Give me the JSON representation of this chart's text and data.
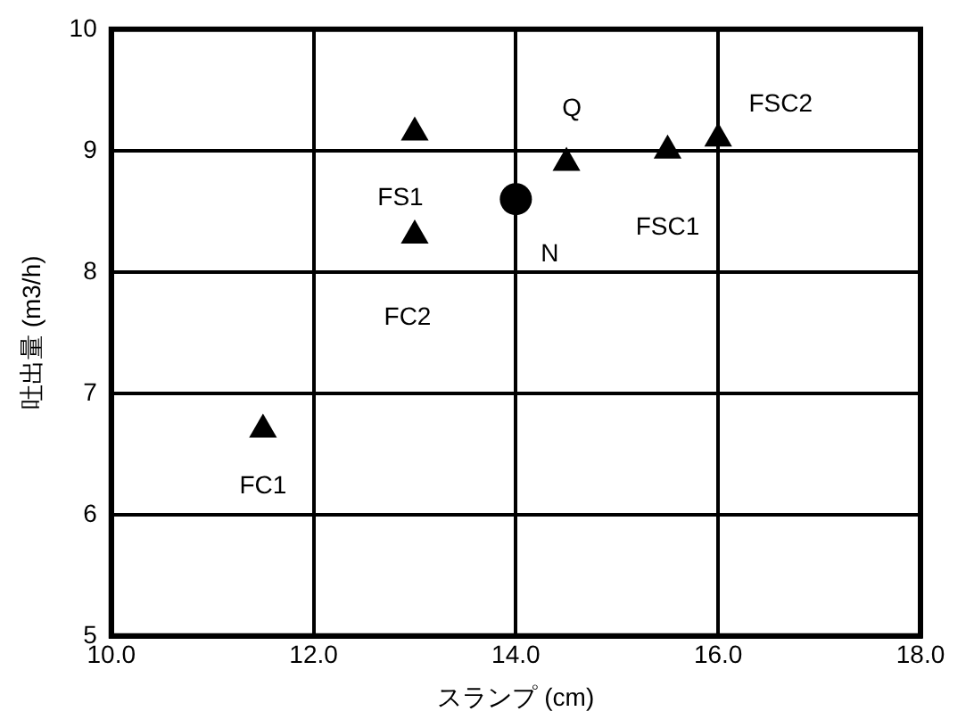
{
  "chart_data": {
    "type": "scatter",
    "xlabel": "スランプ (cm)",
    "ylabel": "吐出量 (m3/h)",
    "series": [
      {
        "color": "#000000",
        "marker": "triangle",
        "x": [
          11.5,
          13.0,
          13.0,
          14.5,
          15.5,
          16.0
        ],
        "values": [
          6.7,
          9.15,
          8.3,
          8.9,
          9.0,
          9.1
        ]
      },
      {
        "color": "#000000",
        "marker": "circle",
        "x": [
          14.0
        ],
        "values": [
          8.6
        ]
      }
    ],
    "xlim": [
      10,
      18
    ],
    "xticks": [
      {
        "value": 10,
        "label": "10.0"
      },
      {
        "value": 12,
        "label": "12.0"
      },
      {
        "value": 14,
        "label": "14.0"
      },
      {
        "value": 16,
        "label": "16.0"
      },
      {
        "value": 18,
        "label": "18.0"
      }
    ],
    "ylim": [
      5,
      10
    ],
    "yticks": [
      5,
      6,
      7,
      8,
      9,
      10
    ],
    "grid": true,
    "legend": false,
    "annotations": [
      {
        "text": "FC1",
        "x": 11.5,
        "y": 6.7
      },
      {
        "text": "FS1",
        "x": 13.0,
        "y": 9.15
      },
      {
        "text": "FC2",
        "x": 13.0,
        "y": 8.3
      },
      {
        "text": "N",
        "x": 14.0,
        "y": 8.6
      },
      {
        "text": "Q",
        "x": 14.5,
        "y": 8.9
      },
      {
        "text": "FSC1",
        "x": 15.5,
        "y": 9.0
      },
      {
        "text": "FSC2",
        "x": 16.0,
        "y": 9.1
      }
    ]
  }
}
